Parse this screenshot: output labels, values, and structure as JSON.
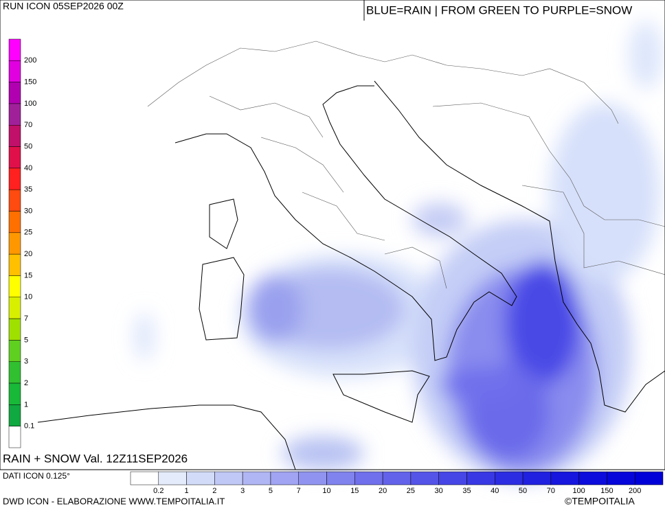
{
  "header": {
    "run": "RUN ICON 05SEP2026 00Z",
    "legend_note": "BLUE=RAIN | FROM GREEN TO PURPLE=SNOW"
  },
  "map": {
    "valid": "RAIN + SNOW Val. 12Z11SEP2026"
  },
  "snow_scale": {
    "labels": [
      200,
      150,
      100,
      70,
      50,
      40,
      35,
      30,
      25,
      20,
      15,
      10,
      7,
      5,
      3,
      2,
      1,
      0.1
    ],
    "colors": [
      "#ff00ff",
      "#e000e0",
      "#b000b0",
      "#a0209a",
      "#c0106a",
      "#e0104a",
      "#ff2020",
      "#ff4a10",
      "#ff7000",
      "#ff9800",
      "#ffc000",
      "#ffff00",
      "#d8f000",
      "#a0e000",
      "#60d020",
      "#30c030",
      "#18b838",
      "#10a840",
      "#ffffff"
    ]
  },
  "rain_scale": {
    "labels": [
      0.2,
      1,
      2,
      3,
      5,
      7,
      10,
      15,
      20,
      25,
      30,
      35,
      40,
      50,
      70,
      100,
      150,
      200
    ],
    "colors": [
      "#ffffff",
      "#e4ecfc",
      "#d2dcf8",
      "#c0c8f6",
      "#b0b6f4",
      "#a0a4f2",
      "#9094f0",
      "#8082ee",
      "#7070ec",
      "#6262ea",
      "#5454e8",
      "#4646e6",
      "#3838e4",
      "#2c2ce2",
      "#2020e0",
      "#1616de",
      "#0c0cdc",
      "#0606da",
      "#0000d8"
    ]
  },
  "footer": {
    "data": "DATI ICON 0.125°",
    "credit": "DWD ICON - ELABORAZIONE WWW.TEMPOITALIA.IT",
    "brand": "©TEMPOITALIA"
  }
}
